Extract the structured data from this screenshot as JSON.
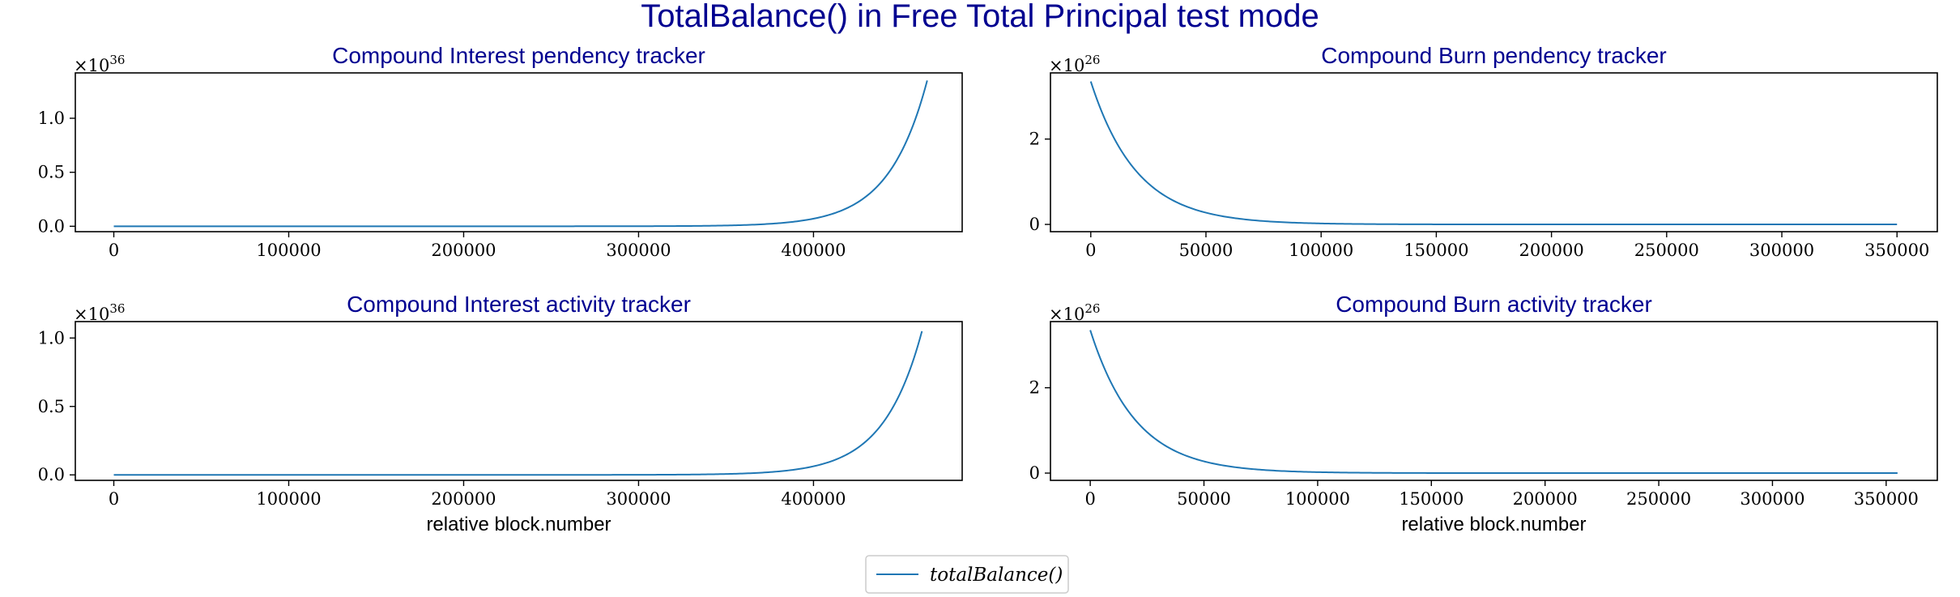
{
  "figure": {
    "title": "TotalBalance() in Free Total Principal test mode",
    "legend": {
      "label": "totalBalance()",
      "color": "#1f77b4",
      "placement": "bottom-center"
    },
    "colors": {
      "title": "#000090",
      "series": "#1f77b4"
    }
  },
  "chart_data": [
    {
      "type": "line",
      "title": "Compound Interest pendency tracker",
      "xlabel": "",
      "ylabel": "",
      "y_multiplier_base": "10",
      "y_multiplier_exp": "36",
      "xlim": [
        -22000,
        485000
      ],
      "ylim": [
        -0.05,
        1.42
      ],
      "xticks": [
        0,
        100000,
        200000,
        300000,
        400000
      ],
      "xtick_labels": [
        "0",
        "100000",
        "200000",
        "300000",
        "400000"
      ],
      "yticks": [
        0.0,
        0.5,
        1.0
      ],
      "ytick_labels": [
        "0.0",
        "0.5",
        "1.0"
      ],
      "series": [
        {
          "name": "totalBalance()",
          "curve": "exponential-growth",
          "x": [
            0,
            465000
          ],
          "y": [
            0.0,
            1.35
          ],
          "decay_scale": 22000
        }
      ]
    },
    {
      "type": "line",
      "title": "Compound Burn pendency tracker",
      "xlabel": "",
      "ylabel": "",
      "y_multiplier_base": "10",
      "y_multiplier_exp": "26",
      "xlim": [
        -17500,
        367500
      ],
      "ylim": [
        -0.17,
        3.55
      ],
      "xticks": [
        0,
        50000,
        100000,
        150000,
        200000,
        250000,
        300000,
        350000
      ],
      "xtick_labels": [
        "0",
        "50000",
        "100000",
        "150000",
        "200000",
        "250000",
        "300000",
        "350000"
      ],
      "yticks": [
        0,
        2
      ],
      "ytick_labels": [
        "0",
        "2"
      ],
      "series": [
        {
          "name": "totalBalance()",
          "curve": "exponential-decay",
          "x": [
            0,
            350000
          ],
          "y": [
            3.35,
            0.0
          ],
          "decay_scale": 20000
        }
      ]
    },
    {
      "type": "line",
      "title": "Compound Interest activity tracker",
      "xlabel": "relative block.number",
      "ylabel": "",
      "y_multiplier_base": "10",
      "y_multiplier_exp": "36",
      "xlim": [
        -22000,
        485000
      ],
      "ylim": [
        -0.04,
        1.12
      ],
      "xticks": [
        0,
        100000,
        200000,
        300000,
        400000
      ],
      "xtick_labels": [
        "0",
        "100000",
        "200000",
        "300000",
        "400000"
      ],
      "yticks": [
        0.0,
        0.5,
        1.0
      ],
      "ytick_labels": [
        "0.0",
        "0.5",
        "1.0"
      ],
      "series": [
        {
          "name": "totalBalance()",
          "curve": "exponential-growth",
          "x": [
            0,
            462000
          ],
          "y": [
            0.0,
            1.05
          ],
          "decay_scale": 22000
        }
      ]
    },
    {
      "type": "line",
      "title": "Compound Burn activity tracker",
      "xlabel": "relative block.number",
      "ylabel": "",
      "y_multiplier_base": "10",
      "y_multiplier_exp": "26",
      "xlim": [
        -17500,
        372500
      ],
      "ylim": [
        -0.17,
        3.55
      ],
      "xticks": [
        0,
        50000,
        100000,
        150000,
        200000,
        250000,
        300000,
        350000
      ],
      "xtick_labels": [
        "0",
        "50000",
        "100000",
        "150000",
        "200000",
        "250000",
        "300000",
        "350000"
      ],
      "yticks": [
        0,
        2
      ],
      "ytick_labels": [
        "0",
        "2"
      ],
      "series": [
        {
          "name": "totalBalance()",
          "curve": "exponential-decay",
          "x": [
            0,
            355000
          ],
          "y": [
            3.35,
            0.0
          ],
          "decay_scale": 20000
        }
      ]
    }
  ]
}
